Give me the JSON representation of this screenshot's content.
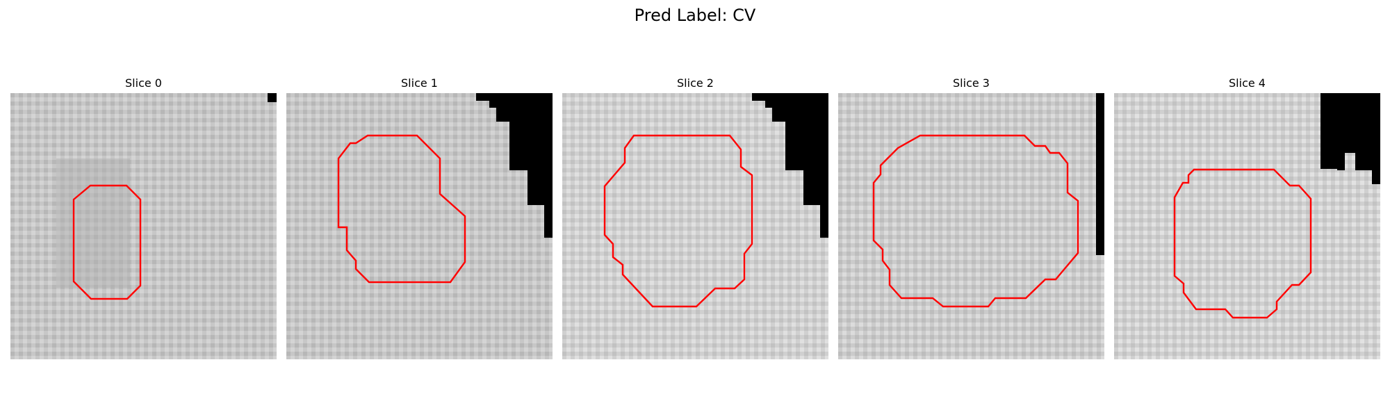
{
  "figure": {
    "title": "Pred Label: CV",
    "contour_color": "#ff0000"
  },
  "slices": [
    {
      "title": "Slice 0"
    },
    {
      "title": "Slice 1"
    },
    {
      "title": "Slice 2"
    },
    {
      "title": "Slice 3"
    },
    {
      "title": "Slice 4"
    }
  ]
}
